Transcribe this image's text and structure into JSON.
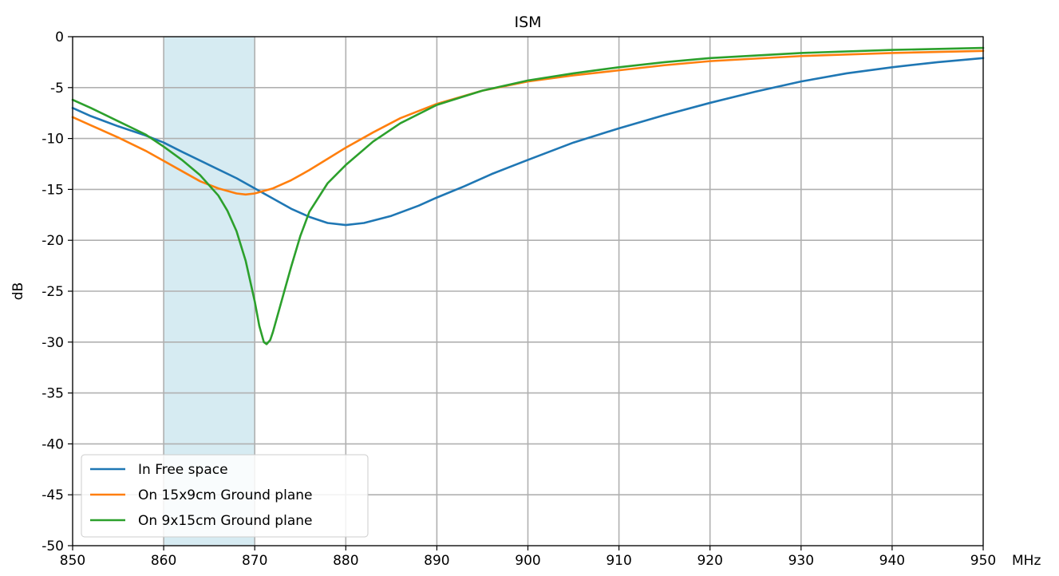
{
  "chart_data": {
    "type": "line",
    "title": "ISM",
    "xlabel": "",
    "ylabel": "dB",
    "x_unit": "MHz",
    "xlim": [
      850,
      950
    ],
    "ylim": [
      -50,
      0
    ],
    "xticks": [
      850,
      860,
      870,
      880,
      890,
      900,
      910,
      920,
      930,
      940,
      950
    ],
    "yticks": [
      0,
      -5,
      -10,
      -15,
      -20,
      -25,
      -30,
      -35,
      -40,
      -45,
      -50
    ],
    "grid": true,
    "legend_position": "lower-left",
    "highlight_band": {
      "x_start": 860,
      "x_end": 870,
      "color": "#add8e6"
    },
    "series": [
      {
        "name": "In Free space",
        "color": "#1f77b4",
        "points": [
          [
            850,
            -7.0
          ],
          [
            852,
            -7.8
          ],
          [
            855,
            -8.8
          ],
          [
            858,
            -9.7
          ],
          [
            860,
            -10.4
          ],
          [
            862,
            -11.3
          ],
          [
            865,
            -12.6
          ],
          [
            868,
            -13.9
          ],
          [
            870,
            -14.9
          ],
          [
            872,
            -15.9
          ],
          [
            874,
            -16.9
          ],
          [
            876,
            -17.7
          ],
          [
            878,
            -18.3
          ],
          [
            880,
            -18.5
          ],
          [
            882,
            -18.3
          ],
          [
            885,
            -17.6
          ],
          [
            888,
            -16.6
          ],
          [
            890,
            -15.8
          ],
          [
            893,
            -14.7
          ],
          [
            896,
            -13.5
          ],
          [
            900,
            -12.1
          ],
          [
            905,
            -10.4
          ],
          [
            910,
            -9.0
          ],
          [
            915,
            -7.7
          ],
          [
            920,
            -6.5
          ],
          [
            925,
            -5.4
          ],
          [
            930,
            -4.4
          ],
          [
            935,
            -3.6
          ],
          [
            940,
            -3.0
          ],
          [
            945,
            -2.5
          ],
          [
            950,
            -2.1
          ]
        ]
      },
      {
        "name": "On 15x9cm Ground plane",
        "color": "#ff7f0e",
        "points": [
          [
            850,
            -7.9
          ],
          [
            852,
            -8.7
          ],
          [
            855,
            -9.9
          ],
          [
            858,
            -11.2
          ],
          [
            860,
            -12.2
          ],
          [
            862,
            -13.2
          ],
          [
            864,
            -14.2
          ],
          [
            866,
            -14.9
          ],
          [
            868,
            -15.4
          ],
          [
            869,
            -15.5
          ],
          [
            870,
            -15.4
          ],
          [
            872,
            -14.9
          ],
          [
            874,
            -14.1
          ],
          [
            876,
            -13.1
          ],
          [
            878,
            -12.0
          ],
          [
            880,
            -10.9
          ],
          [
            883,
            -9.4
          ],
          [
            886,
            -8.0
          ],
          [
            890,
            -6.6
          ],
          [
            895,
            -5.3
          ],
          [
            900,
            -4.4
          ],
          [
            905,
            -3.8
          ],
          [
            910,
            -3.3
          ],
          [
            915,
            -2.8
          ],
          [
            920,
            -2.4
          ],
          [
            930,
            -1.9
          ],
          [
            940,
            -1.6
          ],
          [
            950,
            -1.4
          ]
        ]
      },
      {
        "name": "On 9x15cm Ground plane",
        "color": "#2ca02c",
        "points": [
          [
            850,
            -6.2
          ],
          [
            852,
            -7.0
          ],
          [
            855,
            -8.3
          ],
          [
            858,
            -9.6
          ],
          [
            860,
            -10.8
          ],
          [
            862,
            -12.1
          ],
          [
            864,
            -13.6
          ],
          [
            866,
            -15.6
          ],
          [
            867,
            -17.1
          ],
          [
            868,
            -19.1
          ],
          [
            869,
            -22.0
          ],
          [
            870,
            -26.0
          ],
          [
            870.5,
            -28.4
          ],
          [
            871,
            -30.0
          ],
          [
            871.3,
            -30.2
          ],
          [
            871.7,
            -29.8
          ],
          [
            872,
            -29.0
          ],
          [
            873,
            -25.8
          ],
          [
            874,
            -22.6
          ],
          [
            875,
            -19.6
          ],
          [
            876,
            -17.2
          ],
          [
            878,
            -14.4
          ],
          [
            880,
            -12.6
          ],
          [
            883,
            -10.3
          ],
          [
            886,
            -8.5
          ],
          [
            890,
            -6.7
          ],
          [
            895,
            -5.3
          ],
          [
            900,
            -4.3
          ],
          [
            905,
            -3.6
          ],
          [
            910,
            -3.0
          ],
          [
            915,
            -2.5
          ],
          [
            920,
            -2.1
          ],
          [
            930,
            -1.6
          ],
          [
            940,
            -1.3
          ],
          [
            950,
            -1.1
          ]
        ]
      }
    ]
  }
}
